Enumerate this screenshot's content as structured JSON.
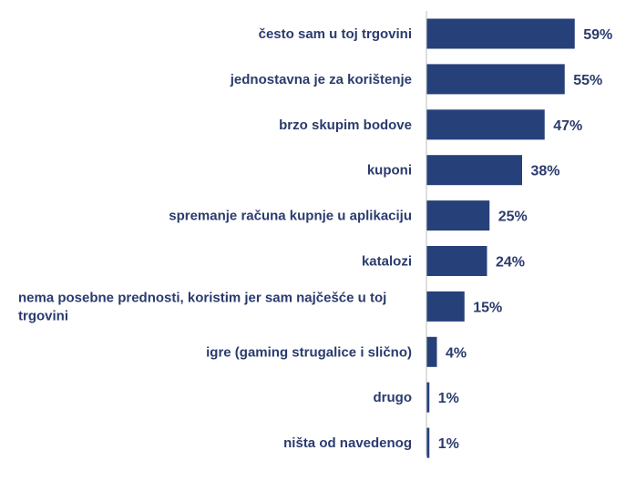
{
  "chart_data": {
    "type": "bar",
    "orientation": "horizontal",
    "categories": [
      [
        "često sam u toj trgovini"
      ],
      [
        "jednostavna je za korištenje"
      ],
      [
        "brzo skupim bodove"
      ],
      [
        "kuponi"
      ],
      [
        "spremanje računa kupnje u aplikaciju"
      ],
      [
        "katalozi"
      ],
      [
        "nema posebne prednosti, koristim jer sam najčešće u toj",
        "trgovini"
      ],
      [
        "igre (gaming strugalice i slično)"
      ],
      [
        "drugo"
      ],
      [
        "ništa od navedenog"
      ]
    ],
    "values": [
      59,
      55,
      47,
      38,
      25,
      24,
      15,
      4,
      1,
      1
    ],
    "value_labels": [
      "59%",
      "55%",
      "47%",
      "38%",
      "25%",
      "24%",
      "15%",
      "4%",
      "1%",
      "1%"
    ],
    "xlim": [
      0,
      100
    ],
    "bar_color": "#26407a",
    "label_color": "#2a3b6e",
    "axis_color": "#bfbfbf",
    "grid": false,
    "legend": "none"
  }
}
